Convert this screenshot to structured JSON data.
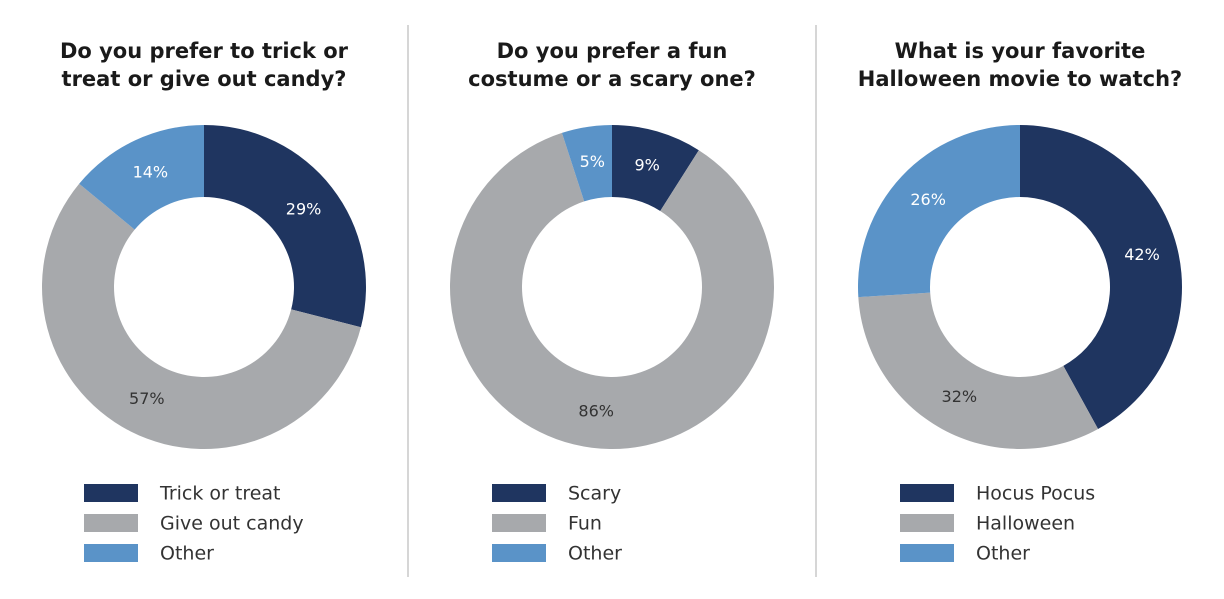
{
  "chart_data": [
    {
      "type": "pie",
      "title_lines": [
        "Do you prefer to trick or",
        "treat or give out candy?"
      ],
      "categories": [
        "Trick or treat",
        "Give out candy",
        "Other"
      ],
      "values": [
        29,
        57,
        14
      ],
      "labels": [
        "29%",
        "57%",
        "14%"
      ]
    },
    {
      "type": "pie",
      "title_lines": [
        "Do you prefer a fun",
        "costume or a scary one?"
      ],
      "categories": [
        "Scary",
        "Fun",
        "Other"
      ],
      "values": [
        9,
        86,
        5
      ],
      "labels": [
        "9%",
        "86%",
        "5%"
      ]
    },
    {
      "type": "pie",
      "title_lines": [
        "What is your favorite",
        "Halloween movie to watch?"
      ],
      "categories": [
        "Hocus Pocus",
        "Halloween",
        "Other"
      ],
      "values": [
        42,
        32,
        26
      ],
      "labels": [
        "42%",
        "32%",
        "26%"
      ]
    }
  ],
  "colors": [
    "#1f3560",
    "#a7a9ac",
    "#5a93c8"
  ],
  "label_colors": [
    "#ffffff",
    "#333333",
    "#ffffff"
  ]
}
